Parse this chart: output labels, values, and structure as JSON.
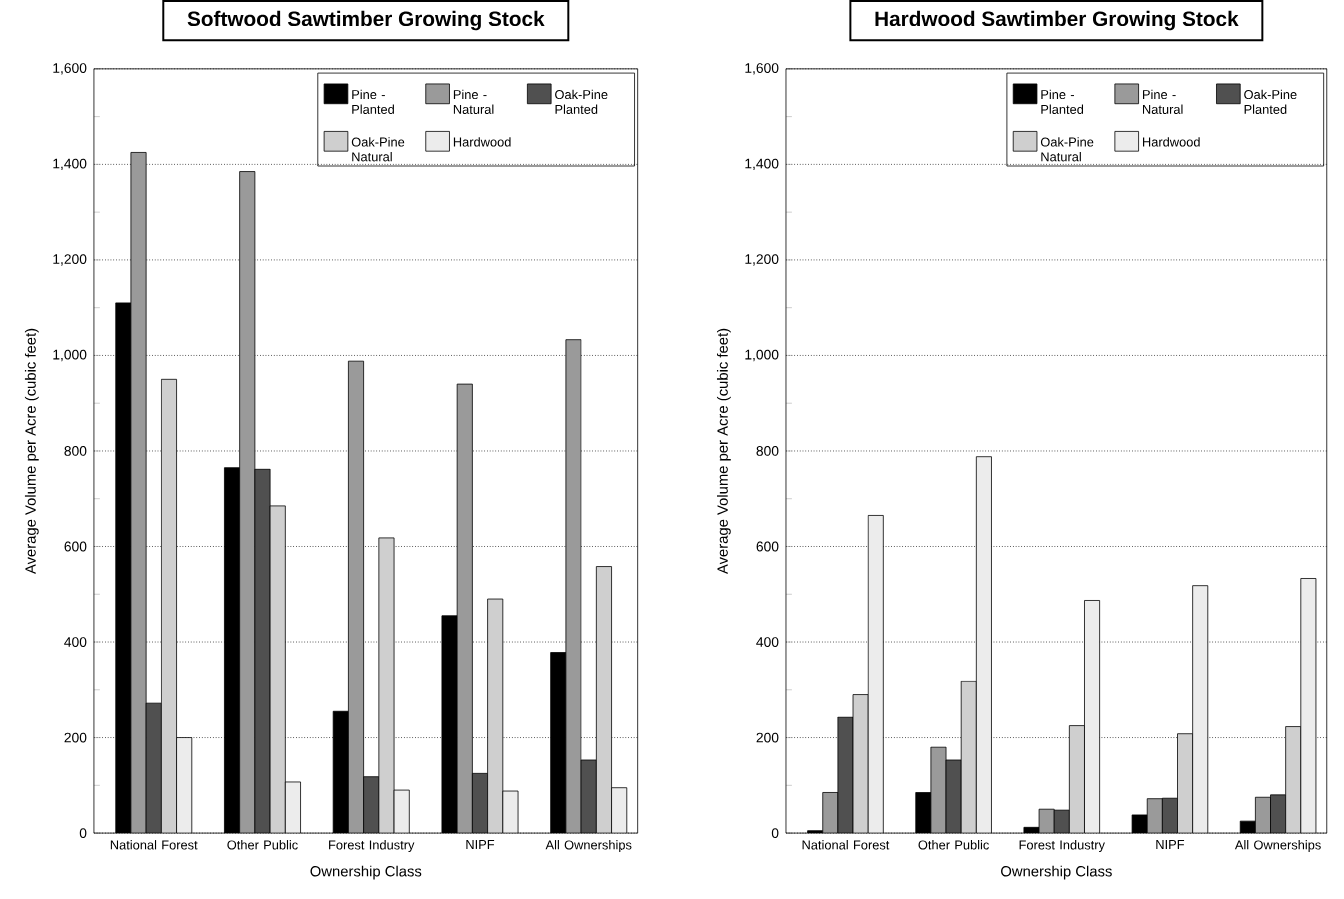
{
  "chart_data": [
    {
      "type": "bar",
      "title": "Softwood Sawtimber Growing Stock",
      "xlabel": "Ownership Class",
      "ylabel": "Average Volume per Acre (cubic feet)",
      "categories": [
        "National Forest",
        "Other Public",
        "Forest Industry",
        "NIPF",
        "All Ownerships"
      ],
      "series": [
        {
          "name": "Pine - Planted",
          "color": "#000000",
          "values": [
            1110,
            765,
            255,
            455,
            378
          ]
        },
        {
          "name": "Pine - Natural",
          "color": "#9a9a9a",
          "values": [
            1425,
            1385,
            988,
            940,
            1033
          ]
        },
        {
          "name": "Oak-Pine Planted",
          "color": "#505050",
          "values": [
            272,
            762,
            118,
            125,
            153
          ]
        },
        {
          "name": "Oak-Pine Natural",
          "color": "#cfcfcf",
          "values": [
            950,
            685,
            618,
            490,
            558
          ]
        },
        {
          "name": "Hardwood",
          "color": "#ececec",
          "values": [
            200,
            107,
            90,
            88,
            95
          ]
        }
      ],
      "ylim": [
        0,
        1600
      ],
      "yticks": [
        0,
        {
          "value": 100,
          "label": null
        },
        200,
        {
          "value": 300,
          "label": null
        },
        400,
        {
          "value": 500,
          "label": null
        },
        600,
        {
          "value": 700,
          "label": null
        },
        800,
        {
          "value": 900,
          "label": null
        },
        {
          "value": 1000,
          "label": "1,000"
        },
        {
          "value": 1100,
          "label": null
        },
        {
          "value": 1200,
          "label": "1,200"
        },
        {
          "value": 1300,
          "label": null
        },
        {
          "value": 1400,
          "label": "1,400"
        },
        {
          "value": 1500,
          "label": null
        },
        {
          "value": 1600,
          "label": "1,600"
        }
      ],
      "grid": "y",
      "legend": "top right"
    },
    {
      "type": "bar",
      "title": "Hardwood Sawtimber Growing Stock",
      "xlabel": "Ownership Class",
      "ylabel": "Average Volume per Acre (cubic feet)",
      "categories": [
        "National Forest",
        "Other Public",
        "Forest Industry",
        "NIPF",
        "All Ownerships"
      ],
      "series": [
        {
          "name": "Pine - Planted",
          "color": "#000000",
          "values": [
            5,
            85,
            12,
            38,
            25
          ]
        },
        {
          "name": "Pine - Natural",
          "color": "#9a9a9a",
          "values": [
            85,
            180,
            50,
            72,
            75
          ]
        },
        {
          "name": "Oak-Pine Planted",
          "color": "#505050",
          "values": [
            243,
            153,
            48,
            73,
            80
          ]
        },
        {
          "name": "Oak-Pine Natural",
          "color": "#cfcfcf",
          "values": [
            290,
            318,
            225,
            208,
            223
          ]
        },
        {
          "name": "Hardwood",
          "color": "#ececec",
          "values": [
            665,
            788,
            487,
            518,
            533
          ]
        }
      ],
      "ylim": [
        0,
        1600
      ],
      "yticks": [
        0,
        {
          "value": 100,
          "label": null
        },
        200,
        {
          "value": 300,
          "label": null
        },
        400,
        {
          "value": 500,
          "label": null
        },
        600,
        {
          "value": 700,
          "label": null
        },
        800,
        {
          "value": 900,
          "label": null
        },
        {
          "value": 1000,
          "label": "1,000"
        },
        {
          "value": 1100,
          "label": null
        },
        {
          "value": 1200,
          "label": "1,200"
        },
        {
          "value": 1300,
          "label": null
        },
        {
          "value": 1400,
          "label": "1,400"
        },
        {
          "value": 1500,
          "label": null
        },
        {
          "value": 1600,
          "label": "1,600"
        }
      ],
      "grid": "y",
      "legend": "top right"
    }
  ]
}
